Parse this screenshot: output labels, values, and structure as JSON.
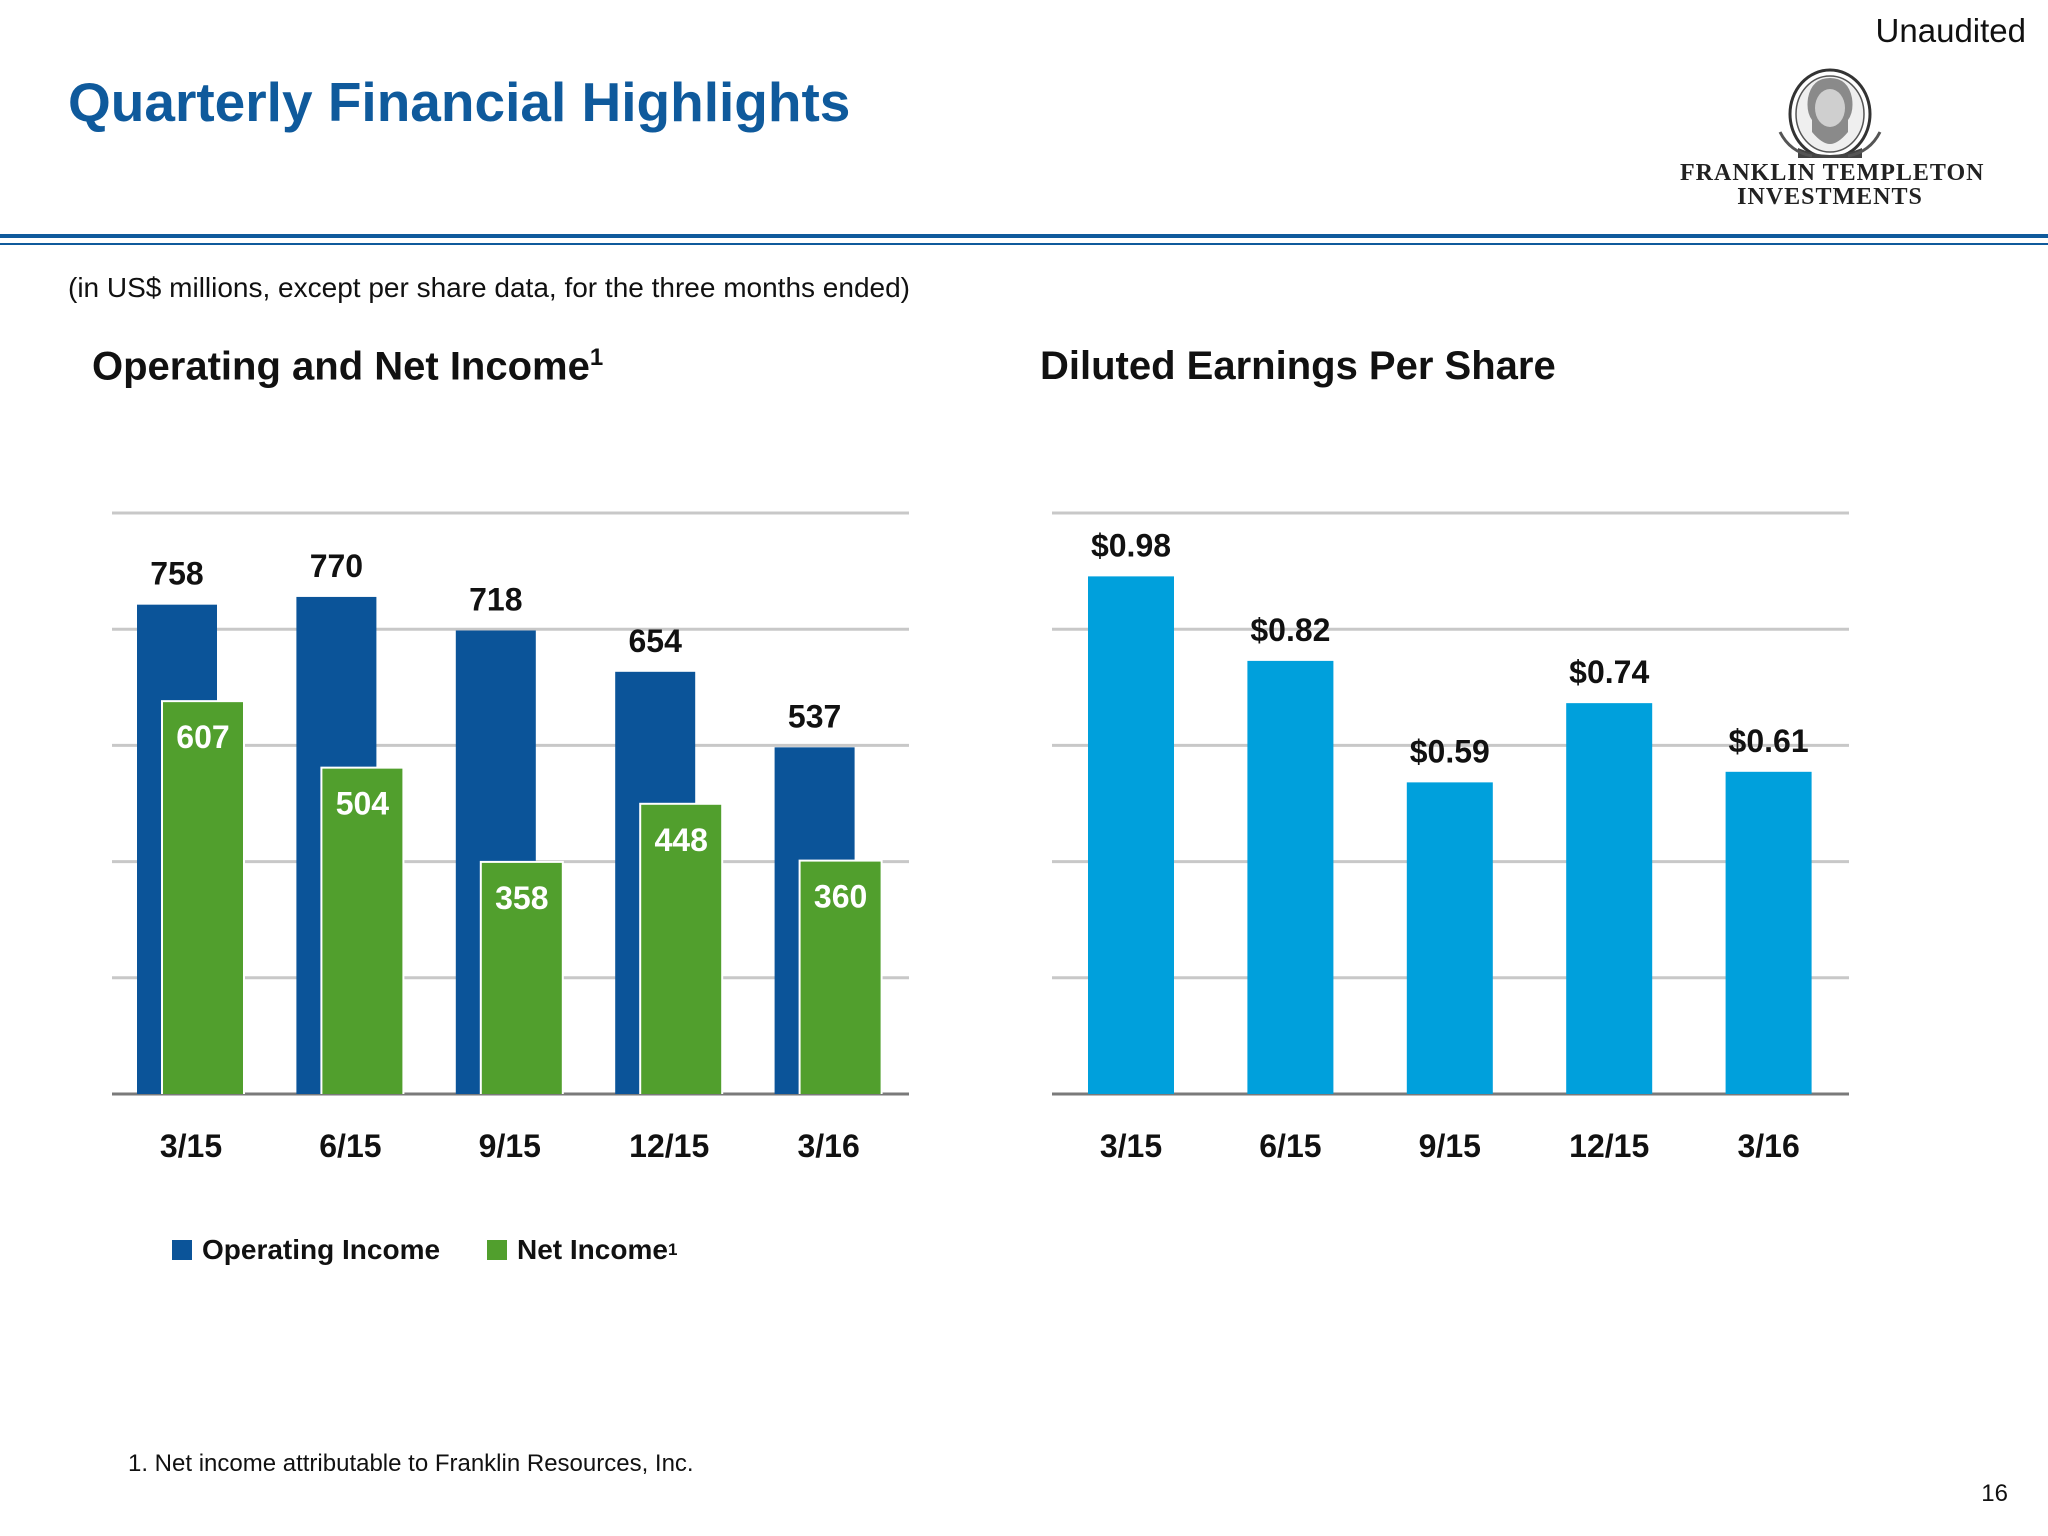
{
  "header": {
    "title": "Quarterly Financial Highlights",
    "status": "Unaudited",
    "logo_line1": "FRANKLIN TEMPLETON",
    "logo_line2": "INVESTMENTS"
  },
  "units_note": "(in US$ millions, except per share data, for the three months ended)",
  "left_chart_heading": "Operating and Net Income",
  "left_chart_heading_sup": "1",
  "right_chart_heading": "Diluted Earnings Per Share",
  "legend": {
    "operating_label": "Operating Income",
    "net_label": "Net Income",
    "net_label_sup": "1"
  },
  "footnote": "1. Net income attributable to Franklin Resources, Inc.",
  "page_number": "16",
  "colors": {
    "operating": "#0b5499",
    "net": "#519f2d",
    "eps": "#00a0dc"
  },
  "chart_data": [
    {
      "type": "bar",
      "title": "Operating and Net Income",
      "categories": [
        "3/15",
        "6/15",
        "9/15",
        "12/15",
        "3/16"
      ],
      "series": [
        {
          "name": "Operating Income",
          "values": [
            758,
            770,
            718,
            654,
            537
          ],
          "labels": [
            "758",
            "770",
            "718",
            "654",
            "537"
          ]
        },
        {
          "name": "Net Income",
          "values": [
            607,
            504,
            358,
            448,
            360
          ],
          "labels": [
            "607",
            "504",
            "358",
            "448",
            "360"
          ]
        }
      ],
      "ylim": [
        0,
        900
      ],
      "gridlines": [
        0,
        180,
        360,
        540,
        720,
        900
      ],
      "legend": "bottom-left"
    },
    {
      "type": "bar",
      "title": "Diluted Earnings Per Share",
      "categories": [
        "3/15",
        "6/15",
        "9/15",
        "12/15",
        "3/16"
      ],
      "values": [
        0.98,
        0.82,
        0.59,
        0.74,
        0.61
      ],
      "labels": [
        "$0.98",
        "$0.82",
        "$0.59",
        "$0.74",
        "$0.61"
      ],
      "ylim": [
        0,
        1.1
      ],
      "gridlines": [
        0,
        0.22,
        0.44,
        0.66,
        0.88,
        1.1
      ]
    }
  ]
}
